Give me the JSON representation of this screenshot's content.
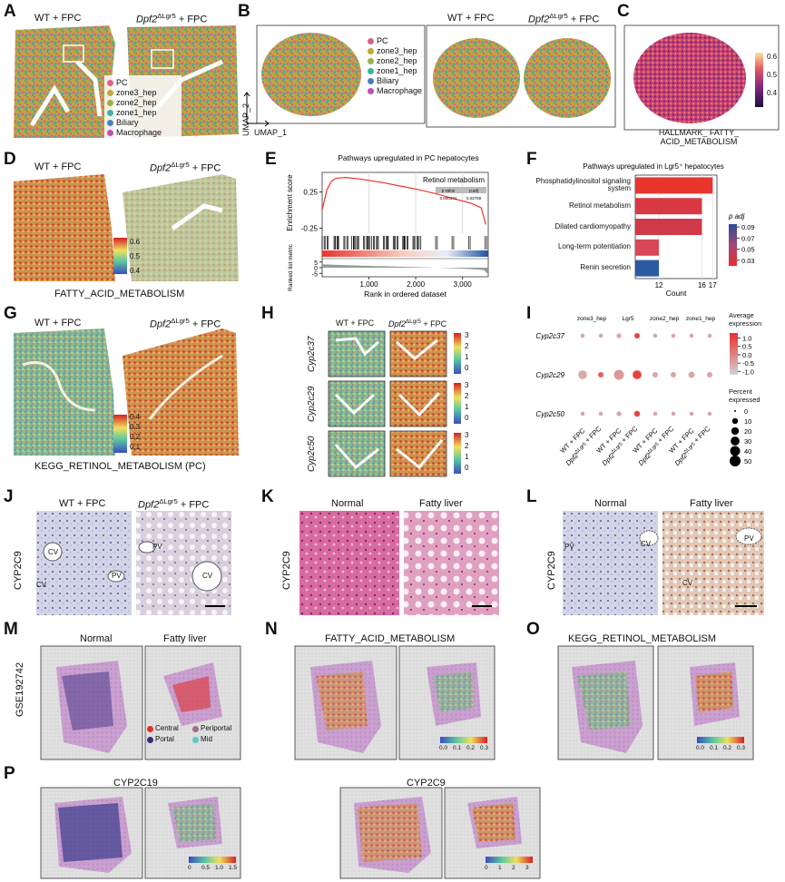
{
  "panels": {
    "A": {
      "letter": "A",
      "left": "WT + FPC",
      "right": "Dpf2ΔLgr5 + FPC",
      "legend": [
        "PC",
        "zone3_hep",
        "zone2_hep",
        "zone1_hep",
        "Biliary",
        "Macrophage"
      ]
    },
    "B": {
      "letter": "B",
      "legend": [
        "PC",
        "zone3_hep",
        "zone2_hep",
        "zone1_hep",
        "Biliary",
        "Macrophage"
      ],
      "left": "WT + FPC",
      "right": "Dpf2ΔLgr5 + FPC",
      "axis_y": "UMAP_2",
      "axis_x": "UMAP_1"
    },
    "C": {
      "letter": "C",
      "caption": "HALLMARK_ FATTY_ ACID_METABOLISM",
      "scale": [
        "0.6",
        "0.5",
        "0.4"
      ]
    },
    "D": {
      "letter": "D",
      "left": "WT + FPC",
      "right": "Dpf2ΔLgr5 + FPC",
      "caption": "FATTY_ACID_METABOLISM",
      "scale": [
        "0.6",
        "0.5",
        "0.4"
      ]
    },
    "E": {
      "letter": "E"
    },
    "F": {
      "letter": "F"
    },
    "G": {
      "letter": "G",
      "left": "WT + FPC",
      "right": "Dpf2ΔLgr5 + FPC",
      "caption": "KEGG_RETINOL_METABOLISM  (PC)",
      "scale": [
        "0.4",
        "0.3",
        "0.2",
        "0.1"
      ]
    },
    "H": {
      "letter": "H",
      "left": "WT + FPC",
      "right": "Dpf2ΔLgr5 + FPC",
      "rows": [
        "Cyp2c37",
        "Cyp2c29",
        "Cyp2c50"
      ],
      "scale": [
        "3",
        "2",
        "1",
        "0"
      ]
    },
    "I": {
      "letter": "I"
    },
    "J": {
      "letter": "J",
      "left": "WT + FPC",
      "right": "Dpf2ΔLgr5 + FPC",
      "ylabel": "CYP2C9",
      "marks": [
        "CV",
        "CV",
        "PV",
        "PV",
        "CV"
      ]
    },
    "K": {
      "letter": "K",
      "left": "Normal",
      "right": "Fatty liver",
      "ylabel": "CYP2C9"
    },
    "L": {
      "letter": "L",
      "left": "Normal",
      "right": "Fatty liver",
      "ylabel": "CYP2C9",
      "marks": [
        "PV",
        "CV",
        "PV",
        "CV"
      ]
    },
    "M": {
      "letter": "M",
      "left": "Normal",
      "right": "Fatty liver",
      "ylabel": "GSE192742",
      "legend": [
        "Central",
        "Periportal",
        "Portal",
        "Mid"
      ]
    },
    "N": {
      "letter": "N",
      "title": "FATTY_ACID_METABOLISM",
      "scale": [
        "0.0",
        "0.1",
        "0.2",
        "0.3"
      ]
    },
    "O": {
      "letter": "O",
      "title": "KEGG_RETINOL_METABOLISM",
      "scale": [
        "0.0",
        "0.1",
        "0.2",
        "0.3"
      ]
    },
    "P": {
      "letter": "P",
      "title_left": "CYP2C19",
      "title_right": "CYP2C9",
      "scale_left": [
        "0",
        "0.5",
        "1.0",
        "1.5"
      ],
      "scale_right": [
        "0",
        "1",
        "2",
        "3"
      ]
    }
  },
  "chart_data": [
    {
      "type": "line",
      "title": "Pathways upregulated in PC hepatocytes",
      "annotation": "Retinol metabolism",
      "ylabel": "Enrichment score",
      "xlabel": "Rank in ordered dataset",
      "metric_label": "Ranked list metric",
      "x": [
        0,
        100,
        200,
        300,
        500,
        800,
        1000,
        1300,
        1600,
        2000,
        2400,
        2800,
        3200,
        3400,
        3500
      ],
      "values": [
        0,
        0.28,
        0.4,
        0.44,
        0.45,
        0.43,
        0.41,
        0.38,
        0.34,
        0.29,
        0.23,
        0.16,
        0.09,
        0.03,
        -0.2
      ],
      "color": "#e8362e",
      "xlim": [
        0,
        3550
      ],
      "ylim": [
        -0.32,
        0.52
      ],
      "yticks": [
        -0.25,
        0.25
      ],
      "xticks": [
        {
          "value": 1000,
          "label": "1,000"
        },
        {
          "value": 2000,
          "label": "2,000"
        },
        {
          "value": 3000,
          "label": "3,000"
        }
      ],
      "metric_ylim": [
        -8,
        8
      ],
      "metric_yticks": [
        5,
        0,
        -5
      ],
      "stats": {
        "columns": [
          "p value",
          "p.adj"
        ],
        "values": [
          "0.000141",
          "0.02759"
        ]
      }
    },
    {
      "type": "bar",
      "orientation": "horizontal",
      "title": "Pathways upregulated in Lgr5⁺ hepatocytes",
      "categories": [
        "Phosphatidylinositol signaling system",
        "Retinol metabolism",
        "Dilated cardiomyopathy",
        "Long-term potentiation",
        "Renin secretion"
      ],
      "values": [
        17,
        16,
        16,
        12,
        12
      ],
      "colors": [
        "#e8362e",
        "#d83a45",
        "#d03a48",
        "#d84858",
        "#2c5aa0"
      ],
      "xlim": [
        9.8,
        17.4
      ],
      "xticks": [
        12,
        16,
        17
      ],
      "xlabel": "Count",
      "legend_title": "p adj",
      "legend_lim": [
        0.02,
        0.095
      ],
      "legend_ticks": [
        0.09,
        0.07,
        0.05,
        0.03
      ]
    },
    {
      "type": "dot",
      "groups": [
        "zone3_hep",
        "Lgr5",
        "zone2_hep",
        "zone1_hep"
      ],
      "categories": [
        "WT + FPC",
        "Dpf2ΔLgr5 + FPC",
        "WT + FPC",
        "Dpf2ΔLgr5 + FPC",
        "WT + FPC",
        "Dpf2ΔLgr5 + FPC",
        "WT + FPC",
        "Dpf2ΔLgr5 + FPC"
      ],
      "series": [
        {
          "name": "Cyp2c37",
          "values": [
            -0.5,
            -0.5,
            -0.5,
            1.0,
            -0.5,
            -0.5,
            -0.5,
            -0.5
          ],
          "sizes": [
            3,
            3,
            5,
            8,
            3,
            3,
            3,
            3
          ]
        },
        {
          "name": "Cyp2c29",
          "values": [
            -0.6,
            0.6,
            -0.3,
            1.0,
            -0.5,
            -0.5,
            -0.5,
            -0.5
          ],
          "sizes": [
            30,
            8,
            40,
            30,
            8,
            8,
            12,
            8
          ]
        },
        {
          "name": "Cyp2c50",
          "values": [
            -0.5,
            -0.5,
            -0.5,
            1.0,
            -0.5,
            -0.5,
            -0.5,
            -0.5
          ],
          "sizes": [
            3,
            3,
            5,
            10,
            3,
            3,
            3,
            3
          ]
        }
      ],
      "colors": [
        "#d3d3d3",
        "#e8302a"
      ],
      "color_title": "Average expression",
      "color_lim": [
        -1.2,
        1.3
      ],
      "color_ticks": [
        {
          "value": 1,
          "label": "1.0"
        },
        {
          "value": 0.5,
          "label": "0.5"
        },
        {
          "value": 0,
          "label": "0.0"
        },
        {
          "value": -0.5,
          "label": "-0.5"
        },
        {
          "value": -1,
          "label": "-1.0"
        }
      ],
      "size_title": "Percent expressed",
      "size_ticks": [
        0,
        10,
        20,
        30,
        40,
        50
      ]
    }
  ]
}
